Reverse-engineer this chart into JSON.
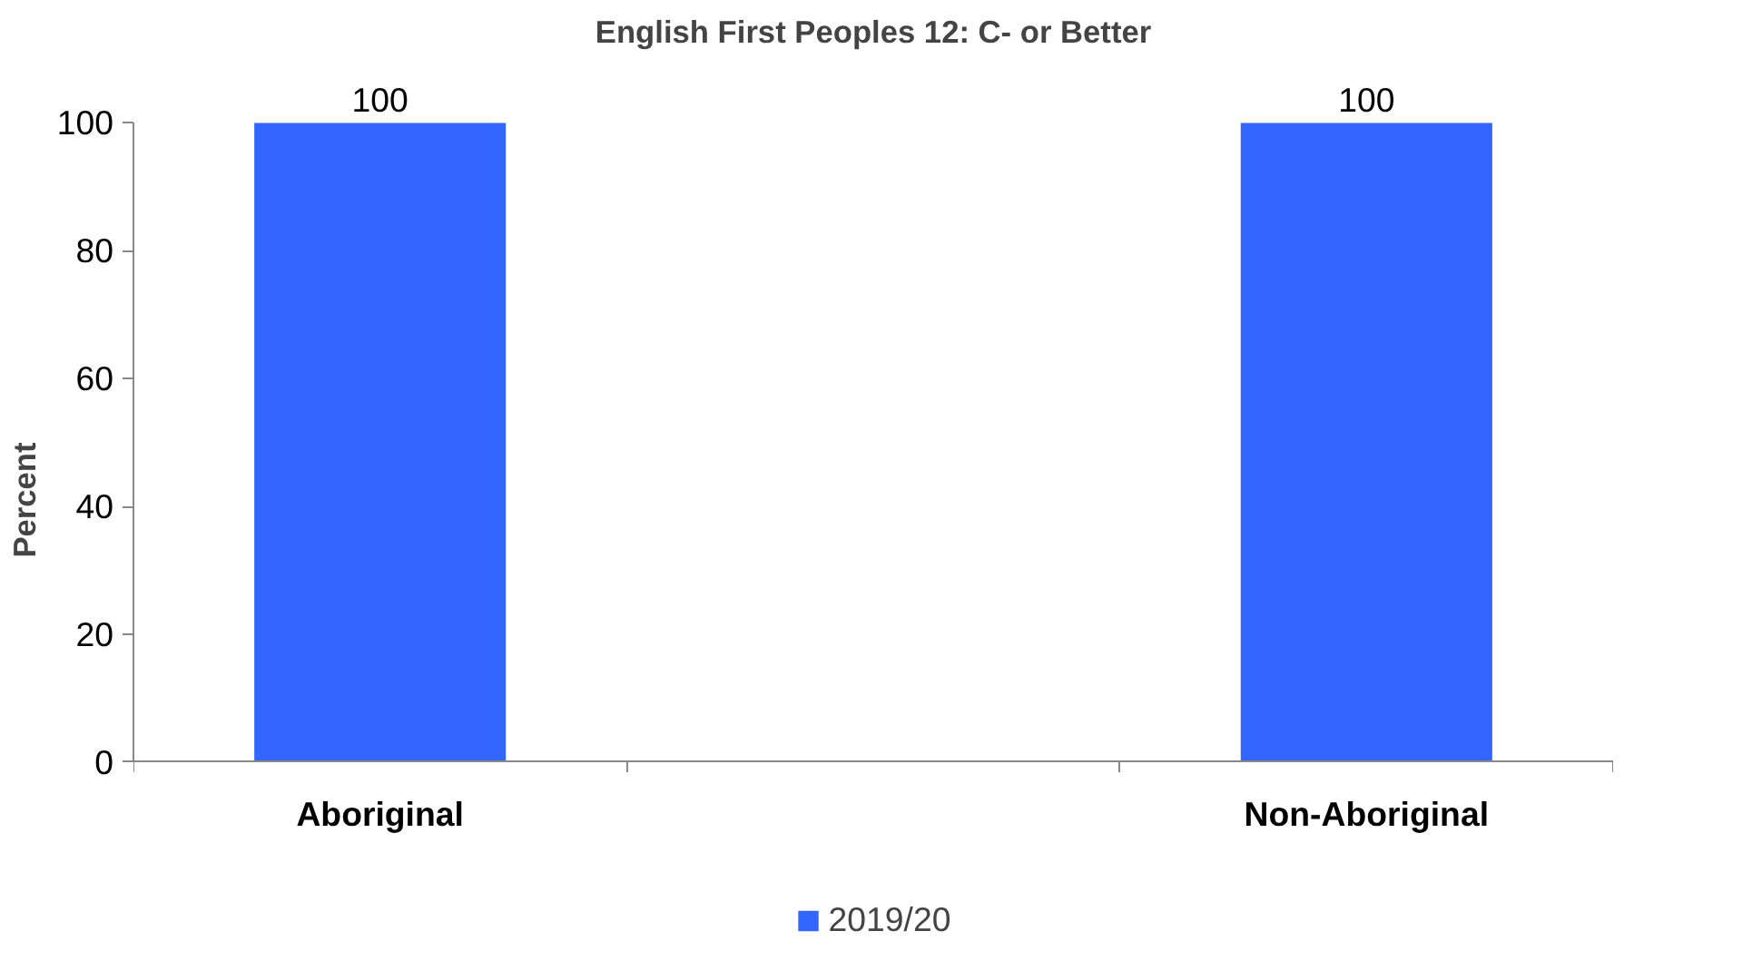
{
  "chart_data": {
    "type": "bar",
    "title": "English First Peoples 12: C- or Better",
    "ylabel": "Percent",
    "categories": [
      "Aboriginal",
      null,
      "Non-Aboriginal"
    ],
    "series": [
      {
        "name": "2019/20",
        "color": "#3366ff",
        "values": [
          100,
          null,
          100
        ]
      }
    ],
    "ylim": [
      0,
      100
    ],
    "yticks": [
      0,
      20,
      40,
      60,
      80,
      100
    ],
    "grid": false,
    "legend": "bottom",
    "data_labels": true
  }
}
